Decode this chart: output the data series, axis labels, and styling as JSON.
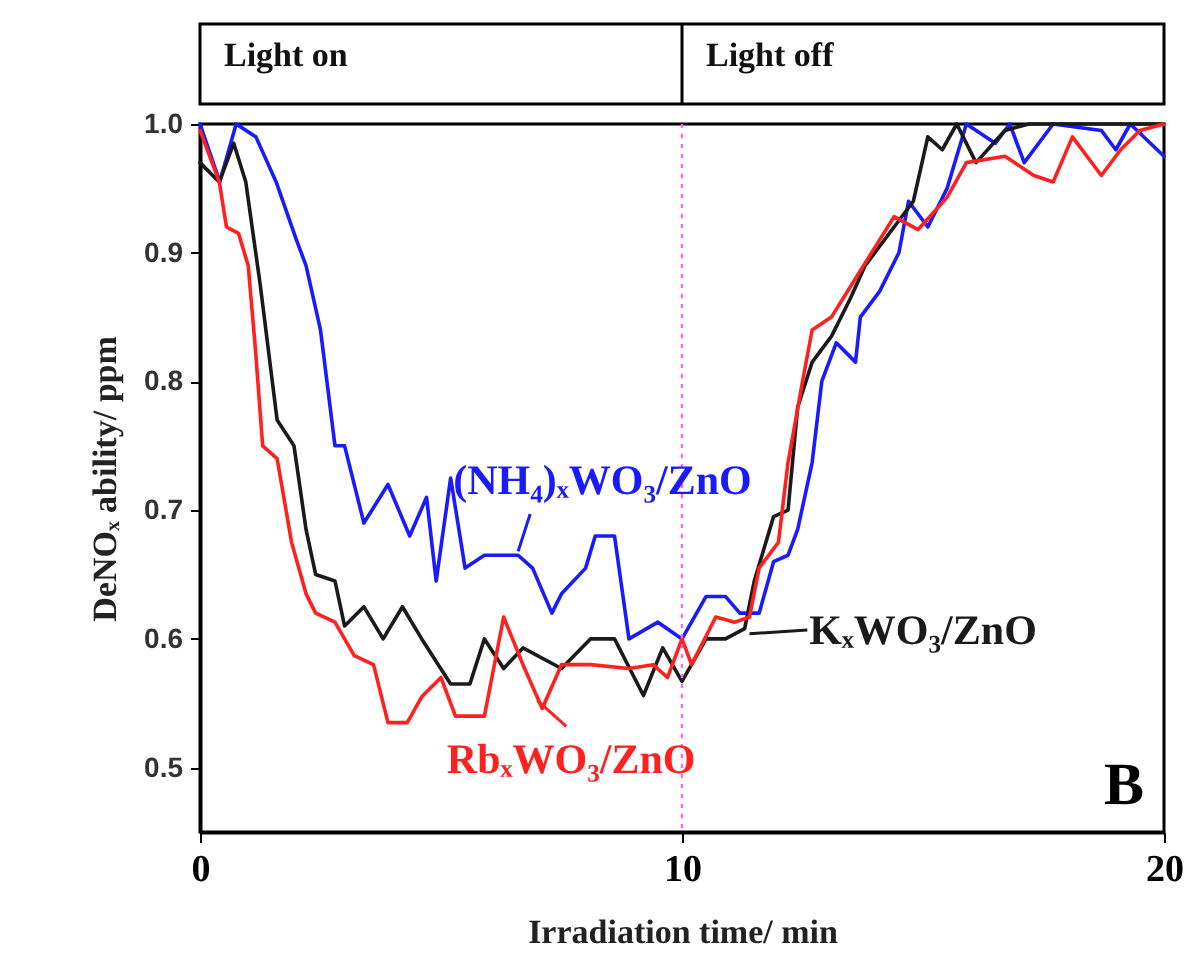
{
  "chart_data": {
    "type": "line",
    "xlabel": "Irradiation time/ min",
    "ylabel": "DeNOₓ ability/ ppm",
    "xlim": [
      0,
      20
    ],
    "xticks": [
      0,
      10,
      20
    ],
    "ylim": [
      0.45,
      1.0
    ],
    "yticks": [
      0.5,
      0.6,
      0.7,
      0.8,
      0.9,
      {
        "value": 1.0,
        "label": "1.0"
      }
    ],
    "grid": false,
    "marker": "none",
    "line_style": "solid",
    "ref_lines": [
      {
        "axis": "x",
        "value": 10,
        "color": "#ff66ff",
        "line_style": "dotted"
      }
    ],
    "annotations": [
      "Light on",
      "Light off",
      "B"
    ],
    "series": [
      {
        "name": "(NH₄)ₓWO₃/ZnO",
        "color": "#1a1aff",
        "x": [
          0,
          0.41,
          0.75,
          1.16,
          1.58,
          2.0,
          2.2,
          2.5,
          2.8,
          3.0,
          3.4,
          3.9,
          4.35,
          4.7,
          4.9,
          5.2,
          5.5,
          5.9,
          6.6,
          6.9,
          7.3,
          7.5,
          8.0,
          8.2,
          8.6,
          8.9,
          9.5,
          10.0,
          10.5,
          10.9,
          11.2,
          11.6,
          11.9,
          12.2,
          12.4,
          12.7,
          12.9,
          13.2,
          13.6,
          13.7,
          14.1,
          14.5,
          14.7,
          15.1,
          15.5,
          15.9,
          16.5,
          16.8,
          17.1,
          17.7,
          18.7,
          19.0,
          19.3,
          20.0
        ],
        "values": [
          1.0,
          0.955,
          1.0,
          0.99,
          0.955,
          0.91,
          0.89,
          0.84,
          0.75,
          0.75,
          0.69,
          0.72,
          0.68,
          0.71,
          0.645,
          0.725,
          0.655,
          0.665,
          0.665,
          0.655,
          0.62,
          0.635,
          0.655,
          0.68,
          0.68,
          0.6,
          0.613,
          0.6,
          0.633,
          0.633,
          0.62,
          0.62,
          0.66,
          0.665,
          0.685,
          0.737,
          0.8,
          0.83,
          0.815,
          0.85,
          0.87,
          0.9,
          0.94,
          0.92,
          0.95,
          1.0,
          0.985,
          1.0,
          0.97,
          1.0,
          0.995,
          0.98,
          1.0,
          0.975
        ]
      },
      {
        "name": "KₓWO₃/ZnO",
        "color": "#1a1a1a",
        "x": [
          0,
          0.4,
          0.7,
          0.95,
          1.25,
          1.6,
          1.95,
          2.2,
          2.4,
          2.8,
          3.0,
          3.4,
          3.8,
          4.2,
          4.6,
          5.2,
          5.6,
          5.9,
          6.3,
          6.7,
          7.5,
          8.1,
          8.6,
          9.2,
          9.6,
          10.0,
          10.5,
          10.9,
          11.3,
          11.5,
          11.9,
          12.2,
          12.4,
          12.7,
          13.1,
          13.5,
          13.8,
          14.4,
          14.8,
          15.1,
          15.4,
          15.7,
          16.1,
          16.7,
          17.2,
          20.0
        ],
        "values": [
          0.97,
          0.955,
          0.985,
          0.955,
          0.875,
          0.77,
          0.75,
          0.685,
          0.65,
          0.645,
          0.61,
          0.625,
          0.6,
          0.625,
          0.6,
          0.565,
          0.565,
          0.6,
          0.577,
          0.593,
          0.577,
          0.6,
          0.6,
          0.556,
          0.593,
          0.567,
          0.6,
          0.6,
          0.608,
          0.645,
          0.695,
          0.7,
          0.78,
          0.815,
          0.835,
          0.865,
          0.89,
          0.92,
          0.94,
          0.99,
          0.98,
          1.0,
          0.97,
          0.995,
          1.0,
          1.0
        ]
      },
      {
        "name": "RbₓWO₃/ZnO",
        "color": "#ff2020",
        "x": [
          0,
          0.4,
          0.55,
          0.8,
          1.0,
          1.15,
          1.3,
          1.6,
          1.9,
          2.2,
          2.4,
          2.8,
          3.2,
          3.6,
          3.9,
          4.3,
          4.6,
          5.0,
          5.3,
          5.9,
          6.3,
          6.7,
          7.1,
          7.5,
          8.1,
          8.9,
          9.4,
          9.7,
          10.0,
          10.2,
          10.7,
          11.1,
          11.4,
          11.6,
          12.0,
          12.2,
          12.5,
          12.7,
          13.1,
          13.6,
          14.1,
          14.4,
          14.9,
          15.5,
          15.9,
          16.7,
          17.3,
          17.7,
          18.1,
          18.7,
          19.1,
          19.5,
          20.0
        ],
        "values": [
          0.995,
          0.955,
          0.92,
          0.915,
          0.89,
          0.825,
          0.75,
          0.74,
          0.675,
          0.635,
          0.62,
          0.613,
          0.587,
          0.58,
          0.535,
          0.535,
          0.555,
          0.57,
          0.54,
          0.54,
          0.617,
          0.58,
          0.546,
          0.58,
          0.58,
          0.577,
          0.58,
          0.57,
          0.6,
          0.58,
          0.617,
          0.613,
          0.617,
          0.655,
          0.675,
          0.737,
          0.8,
          0.84,
          0.85,
          0.88,
          0.91,
          0.928,
          0.918,
          0.943,
          0.97,
          0.975,
          0.96,
          0.955,
          0.99,
          0.96,
          0.98,
          0.995,
          1.0
        ]
      }
    ]
  }
}
